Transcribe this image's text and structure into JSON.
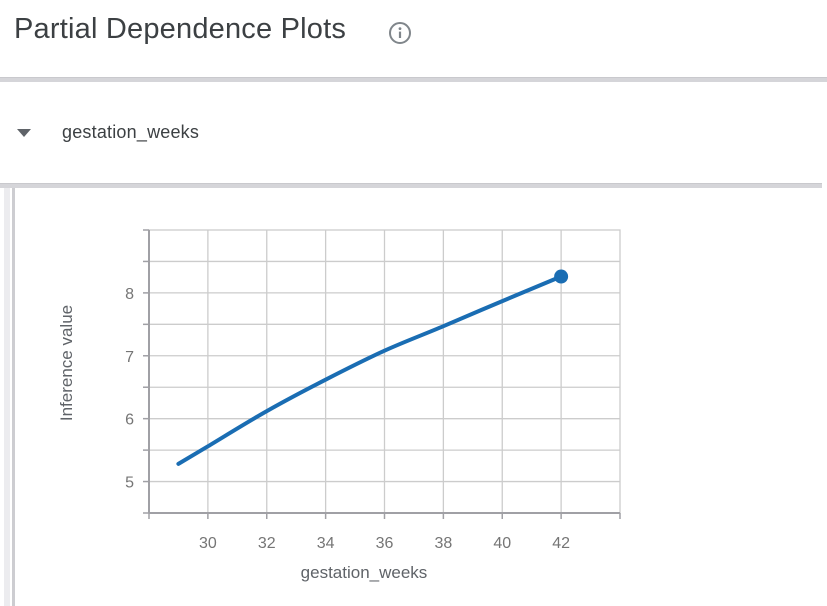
{
  "page": {
    "title": "Partial Dependence Plots"
  },
  "icons": {
    "title_info": "info-circle-outline",
    "section_collapse": "triangle-down"
  },
  "section": {
    "label": "gestation_weeks",
    "expanded": true
  },
  "chart_data": {
    "type": "line",
    "title": "",
    "xlabel": "gestation_weeks",
    "ylabel": "Inference value",
    "x": [
      29,
      30,
      32,
      34,
      36,
      38,
      40,
      42
    ],
    "values": [
      5.28,
      5.56,
      6.12,
      6.62,
      7.08,
      7.47,
      7.87,
      8.26
    ],
    "xlim": [
      28,
      44
    ],
    "ylim": [
      4.5,
      9.0
    ],
    "xticks": [
      30,
      32,
      34,
      36,
      38,
      40,
      42
    ],
    "yticks": [
      5,
      6,
      7,
      8
    ],
    "x_tick_step": 2,
    "y_grid_step": 0.5,
    "grid": true,
    "legend": "none",
    "line_color": "#1a6db3",
    "endpoint_marker": {
      "x": 42,
      "y": 8.26,
      "radius": 7
    }
  },
  "colors": {
    "accent_blue": "#1a6db3",
    "grid": "#cccccc",
    "axis": "#a0a0a5",
    "tick_text": "#757575",
    "axis_title_text": "#5f6368",
    "heading_text": "#3c4043",
    "divider": "#d5d5d9"
  }
}
